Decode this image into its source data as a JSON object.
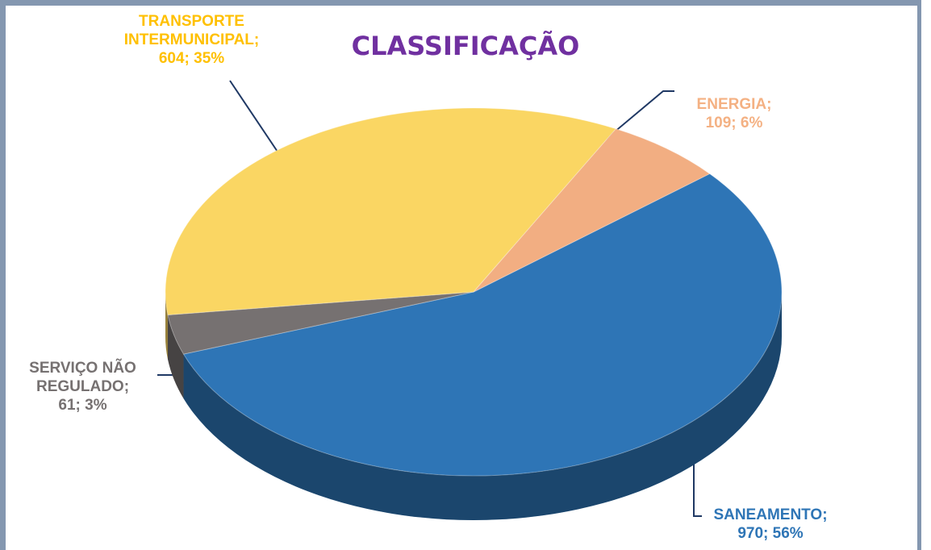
{
  "chart_data": {
    "type": "pie",
    "title": "CLASSIFICAÇÃO",
    "categories": [
      "SANEAMENTO;",
      "SERVIÇO NÃO REGULADO;",
      "TRANSPORTE INTERMUNICIPAL;",
      "ENERGIA;"
    ],
    "values": [
      970,
      61,
      604,
      109
    ],
    "value_labels": [
      "970; 56%",
      "61; 3%",
      "604; 35%",
      "109; 6%"
    ],
    "colors": [
      "#2e75b6",
      "#767171",
      "#fad663",
      "#f2ae82"
    ],
    "label_colors": [
      "#2e75b6",
      "#767171",
      "#ffc000",
      "#f4b183"
    ]
  }
}
